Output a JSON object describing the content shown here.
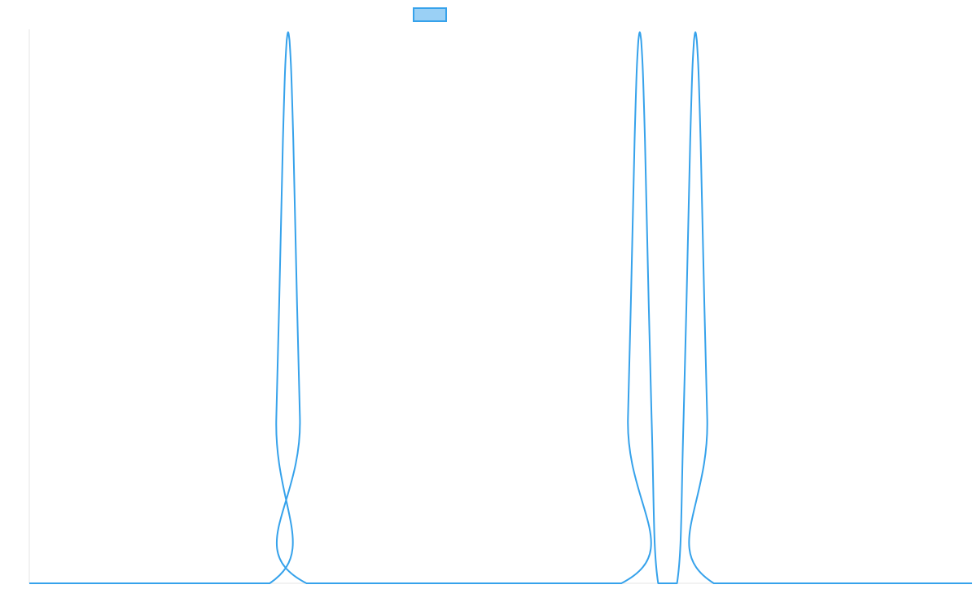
{
  "chart_data": {
    "type": "line",
    "title": "",
    "xlabel": "",
    "ylabel": "",
    "grid": false,
    "legend": {
      "placement": "top-center",
      "entries": [
        {
          "label": "",
          "fill": "#9ad0f5",
          "stroke": "#36a2eb"
        }
      ]
    },
    "xlim": [
      0,
      100
    ],
    "ylim": [
      0,
      1
    ],
    "series": [
      {
        "color": "#36a2eb",
        "x": [
          0,
          25.5,
          26.2,
          26.9,
          27.3,
          27.6,
          28.0,
          28.7,
          29.4,
          62.8,
          63.5,
          64.2,
          64.6,
          64.9,
          65.3,
          66.0,
          66.7,
          68.7,
          69.4,
          70.1,
          70.5,
          70.8,
          71.2,
          71.9,
          72.6,
          100
        ],
        "y": [
          0,
          0,
          0.3,
          0.8,
          0.98,
          0.98,
          0.8,
          0.3,
          0,
          0,
          0.3,
          0.8,
          0.98,
          0.98,
          0.8,
          0.3,
          0,
          0,
          0.3,
          0.8,
          0.98,
          0.98,
          0.8,
          0.3,
          0,
          0
        ]
      }
    ]
  }
}
